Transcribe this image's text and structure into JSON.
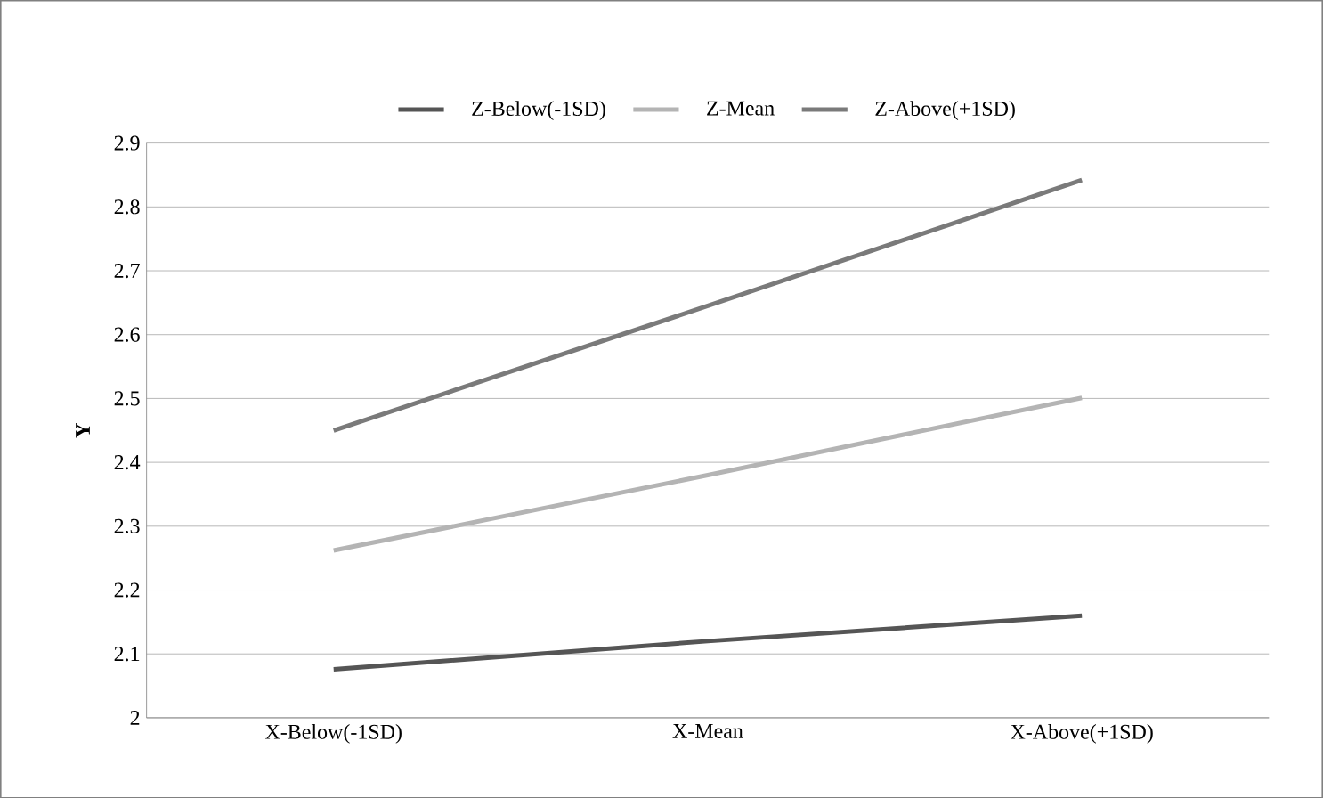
{
  "chart_data": {
    "type": "line",
    "ylabel": "Y",
    "categories": [
      "X-Below(-1SD)",
      "X-Mean",
      "X-Above(+1SD)"
    ],
    "series": [
      {
        "name": "Z-Below(-1SD)",
        "color": "#555555",
        "values": [
          2.076,
          2.12,
          2.16
        ]
      },
      {
        "name": "Z-Mean",
        "color": "#b4b4b4",
        "values": [
          2.262,
          2.38,
          2.501
        ]
      },
      {
        "name": "Z-Above(+1SD)",
        "color": "#7a7a7a",
        "values": [
          2.45,
          2.645,
          2.842
        ]
      }
    ],
    "ylim": [
      2,
      2.9
    ],
    "yticks": [
      2,
      2.1,
      2.2,
      2.3,
      2.4,
      2.5,
      2.6,
      2.7,
      2.8,
      2.9
    ],
    "grid": "y",
    "legend": "top",
    "marker": "none",
    "line_style": "solid"
  }
}
